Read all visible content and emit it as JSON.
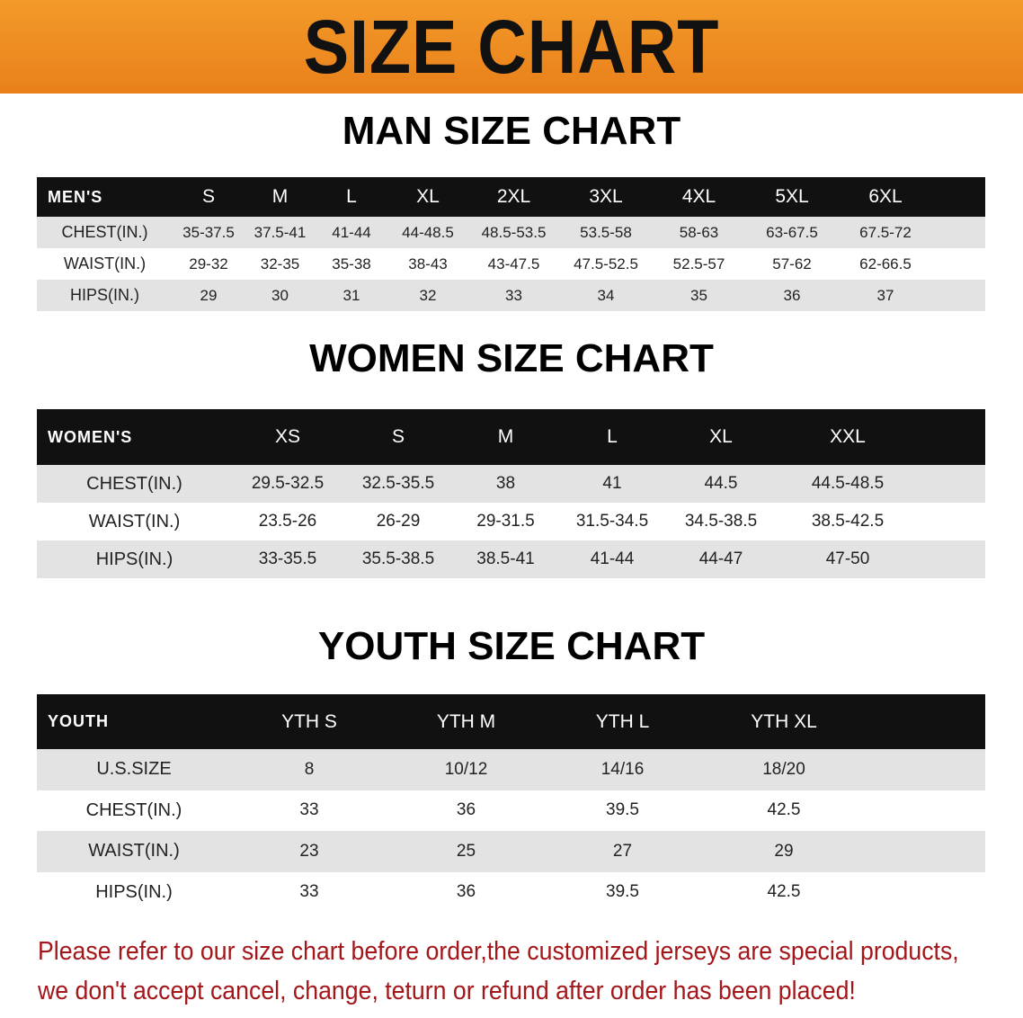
{
  "banner_title": "SIZE CHART",
  "sections": [
    {
      "title": "MAN SIZE CHART",
      "header_label": "MEN'S",
      "columns": [
        "S",
        "M",
        "L",
        "XL",
        "2XL",
        "3XL",
        "4XL",
        "5XL",
        "6XL"
      ],
      "rows": [
        {
          "label": "CHEST(IN.)",
          "values": [
            "35-37.5",
            "37.5-41",
            "41-44",
            "44-48.5",
            "48.5-53.5",
            "53.5-58",
            "58-63",
            "63-67.5",
            "67.5-72"
          ]
        },
        {
          "label": "WAIST(IN.)",
          "values": [
            "29-32",
            "32-35",
            "35-38",
            "38-43",
            "43-47.5",
            "47.5-52.5",
            "52.5-57",
            "57-62",
            "62-66.5"
          ]
        },
        {
          "label": "HIPS(IN.)",
          "values": [
            "29",
            "30",
            "31",
            "32",
            "33",
            "34",
            "35",
            "36",
            "37"
          ]
        }
      ]
    },
    {
      "title": "WOMEN SIZE CHART",
      "header_label": "WOMEN'S",
      "columns": [
        "XS",
        "S",
        "M",
        "L",
        "XL",
        "XXL"
      ],
      "rows": [
        {
          "label": "CHEST(IN.)",
          "values": [
            "29.5-32.5",
            "32.5-35.5",
            "38",
            "41",
            "44.5",
            "44.5-48.5"
          ]
        },
        {
          "label": "WAIST(IN.)",
          "values": [
            "23.5-26",
            "26-29",
            "29-31.5",
            "31.5-34.5",
            "34.5-38.5",
            "38.5-42.5"
          ]
        },
        {
          "label": "HIPS(IN.)",
          "values": [
            "33-35.5",
            "35.5-38.5",
            "38.5-41",
            "41-44",
            "44-47",
            "47-50"
          ]
        }
      ]
    },
    {
      "title": "YOUTH SIZE CHART",
      "header_label": "YOUTH",
      "columns": [
        "YTH S",
        "YTH M",
        "YTH L",
        "YTH XL"
      ],
      "rows": [
        {
          "label": "U.S.SIZE",
          "values": [
            "8",
            "10/12",
            "14/16",
            "18/20"
          ]
        },
        {
          "label": "CHEST(IN.)",
          "values": [
            "33",
            "36",
            "39.5",
            "42.5"
          ]
        },
        {
          "label": "WAIST(IN.)",
          "values": [
            "23",
            "25",
            "27",
            "29"
          ]
        },
        {
          "label": "HIPS(IN.)",
          "values": [
            "33",
            "36",
            "39.5",
            "42.5"
          ]
        }
      ]
    }
  ],
  "note_lines": [
    "Please refer to our size chart before order,the customized jerseys are special products,",
    "we don't accept cancel, change, teturn or refund after order has been placed!"
  ],
  "colors": {
    "banner": "#ee8a20",
    "header_row": "#111111",
    "stripe": "#e3e3e3",
    "note": "#a3161a"
  }
}
